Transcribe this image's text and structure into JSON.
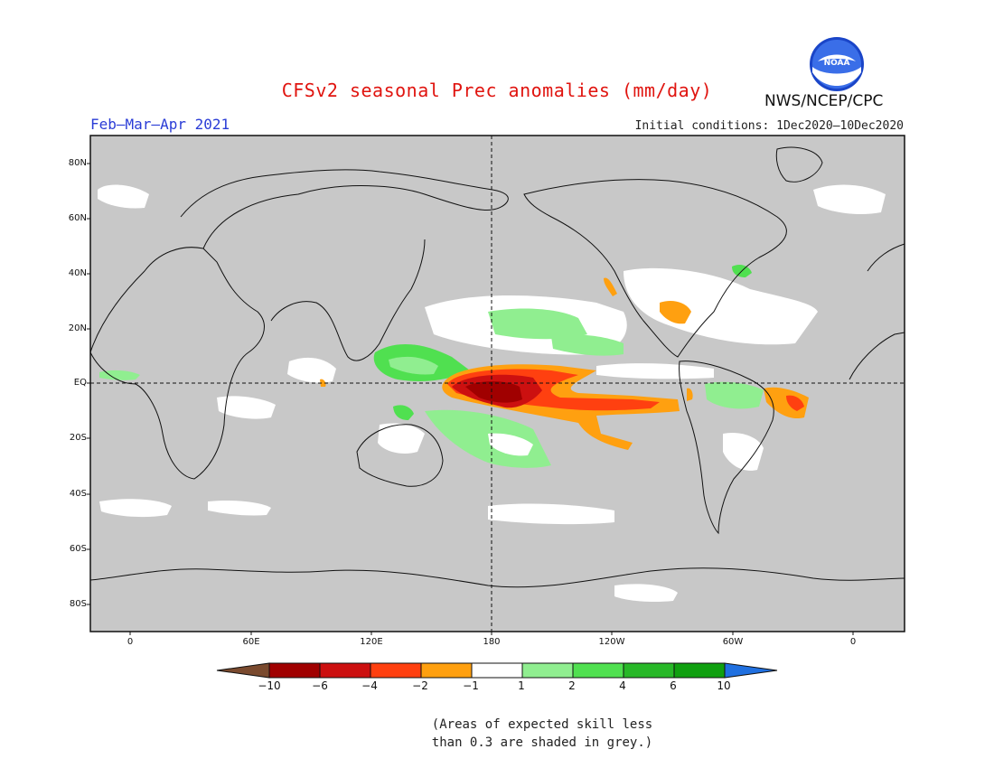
{
  "title": "CFSv2 seasonal Prec anomalies (mm/day)",
  "period": "Feb–Mar–Apr 2021",
  "initial_conditions": "Initial conditions: 1Dec2020–10Dec2020",
  "organization": "NWS/NCEP/CPC",
  "logo_text": "NOAA",
  "lat_labels": [
    "80N",
    "60N",
    "40N",
    "20N",
    "EQ",
    "20S",
    "40S",
    "60S",
    "80S"
  ],
  "lon_labels": [
    "0",
    "60E",
    "120E",
    "180",
    "120W",
    "60W",
    "0"
  ],
  "colorbar": {
    "labels": [
      "−10",
      "−6",
      "−4",
      "−2",
      "−1",
      "1",
      "2",
      "4",
      "6",
      "10"
    ],
    "colors": [
      "#7a4a2e",
      "#a00000",
      "#cc1010",
      "#ff4010",
      "#ffa010",
      "#ffffff",
      "#90ee90",
      "#50e050",
      "#28b828",
      "#10a010",
      "#2070e0"
    ]
  },
  "note": [
    "(Areas of expected skill less",
    "than 0.3 are shaded in grey.)"
  ],
  "colors": {
    "grey": "#c8c8c8",
    "title": "#e0140f",
    "period": "#2a3cd6"
  }
}
